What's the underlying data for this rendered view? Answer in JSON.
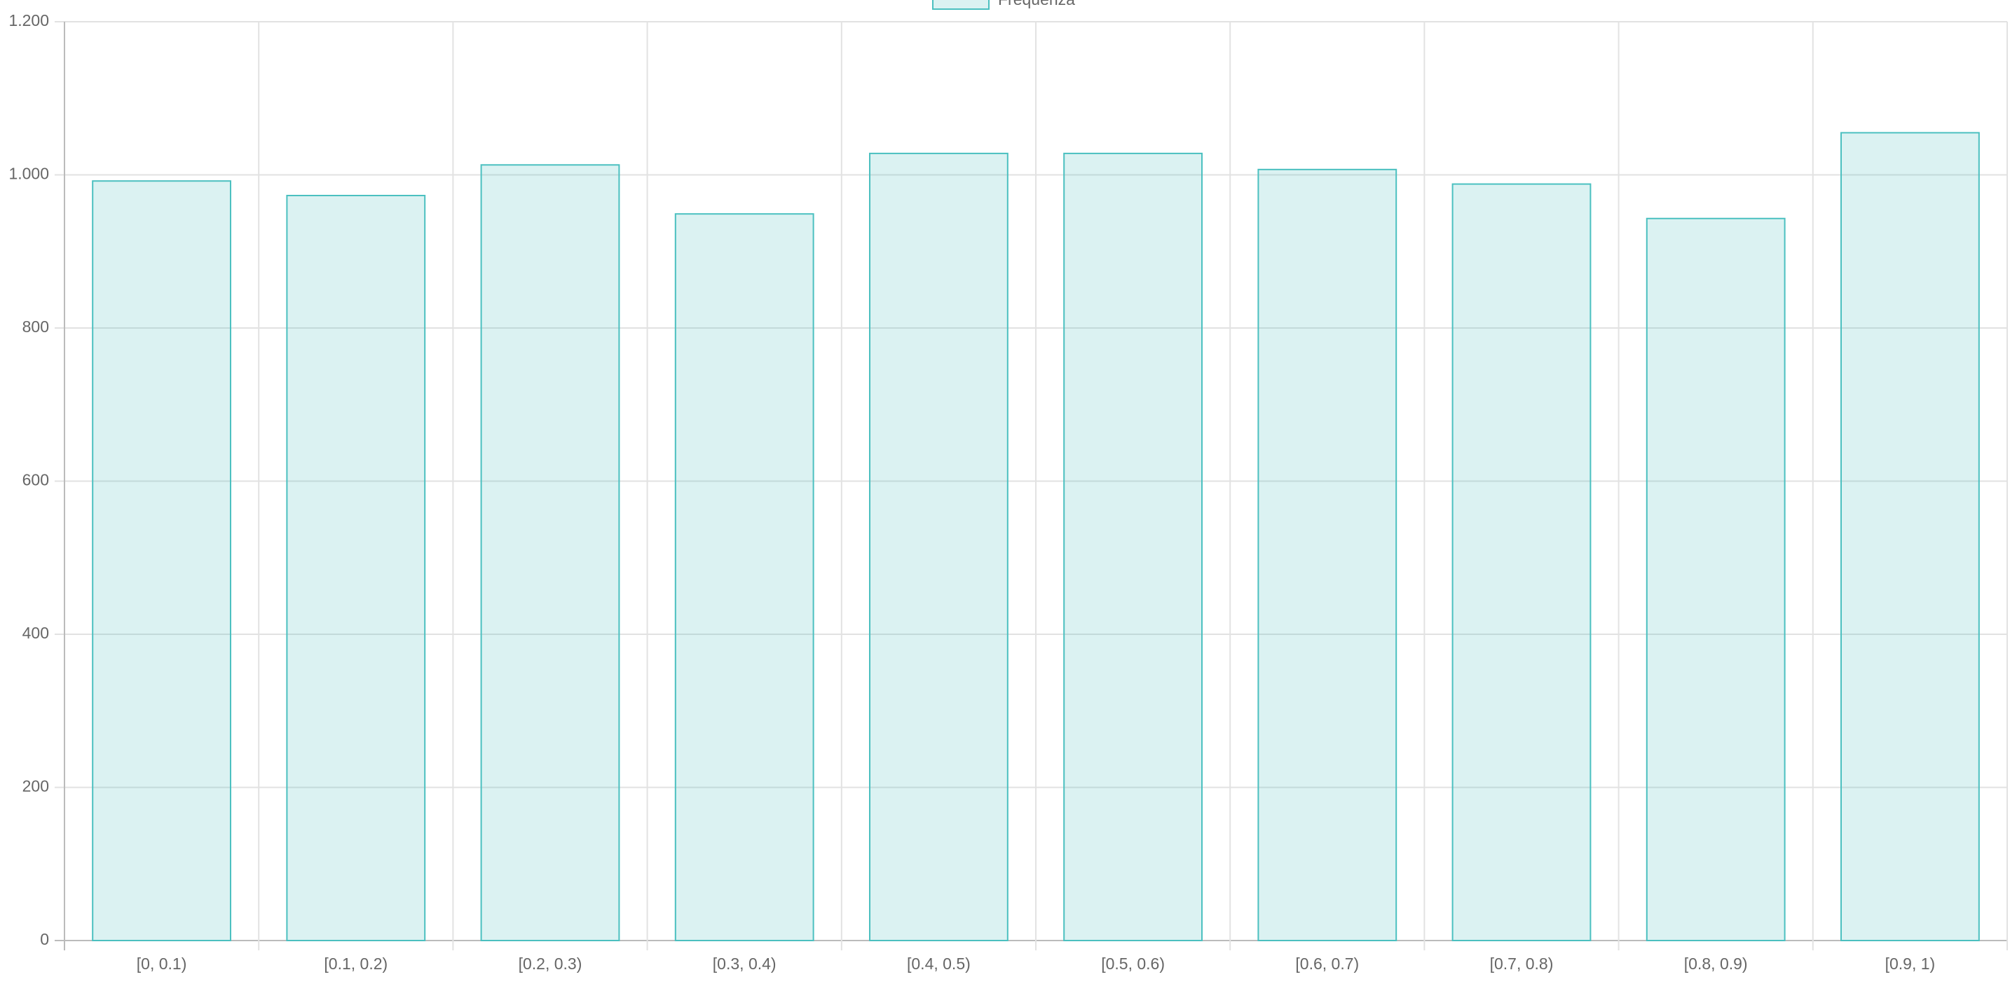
{
  "chart_data": {
    "type": "bar",
    "legend": "Frequenza",
    "categories": [
      "[0, 0.1)",
      "[0.1, 0.2)",
      "[0.2, 0.3)",
      "[0.3, 0.4)",
      "[0.4, 0.5)",
      "[0.5, 0.6)",
      "[0.6, 0.7)",
      "[0.7, 0.8)",
      "[0.8, 0.9)",
      "[0.9, 1)"
    ],
    "values": [
      992,
      973,
      1013,
      949,
      1028,
      1028,
      1007,
      988,
      943,
      1055
    ],
    "color": "#4bc0c0",
    "ylim": [
      0,
      1200
    ],
    "yticks": [
      0,
      200,
      400,
      600,
      800,
      {
        "value": 1000,
        "label": "1.000"
      },
      {
        "value": 1200,
        "label": "1.200"
      }
    ],
    "grid": true
  }
}
